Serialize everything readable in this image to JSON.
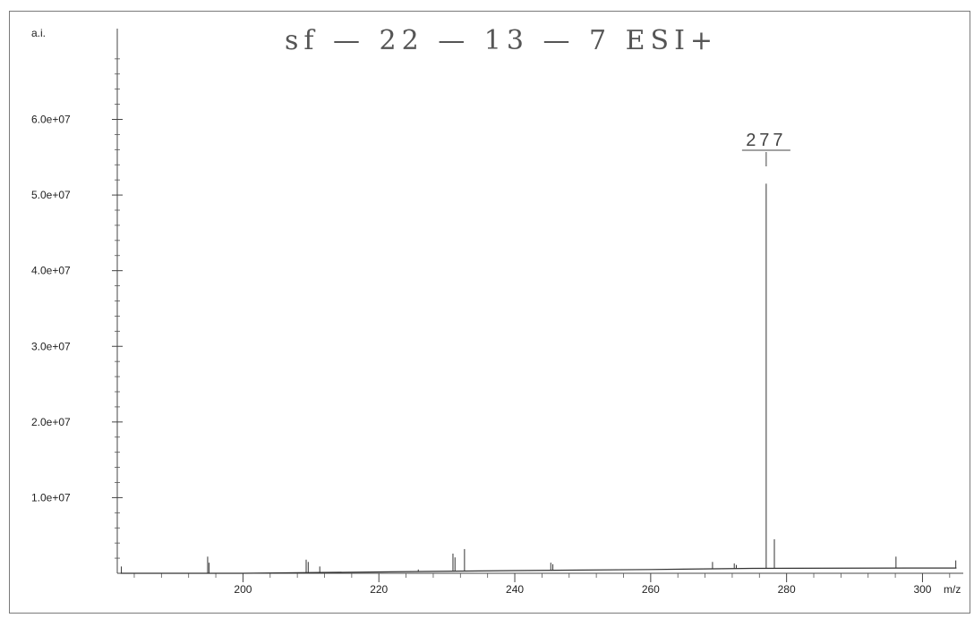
{
  "chart_data": {
    "type": "line",
    "title": "sf — 22 — 13 — 7  ESI+",
    "ylabel": "a.i.",
    "xlabel": "m/z",
    "xlim": [
      181.5,
      306
    ],
    "ylim": [
      0,
      72000000
    ],
    "x_ticks": [
      200,
      220,
      240,
      260,
      280,
      300
    ],
    "x_tick_labels": [
      "200",
      "220",
      "240",
      "260",
      "280",
      "300"
    ],
    "y_ticks": [
      10000000,
      20000000,
      30000000,
      40000000,
      50000000,
      60000000
    ],
    "y_tick_labels": [
      "1.0e+07",
      "2.0e+07",
      "3.0e+07",
      "4.0e+07",
      "5.0e+07",
      "6.0e+07"
    ],
    "grid": false,
    "baseline": {
      "x": [
        182,
        200,
        220,
        240,
        260,
        275,
        300,
        305
      ],
      "y": [
        0,
        0,
        180000,
        350000,
        500000,
        650000,
        700000,
        700000
      ]
    },
    "peaks": {
      "x": [
        182.1,
        194.8,
        195,
        209.3,
        209.6,
        211.3,
        225.8,
        230.9,
        231.2,
        232.6,
        245.3,
        245.6,
        269.1,
        272.3,
        272.6,
        277,
        278.2,
        296.1,
        304.9
      ],
      "y": [
        900000,
        2200000,
        1400000,
        1800000,
        1500000,
        900000,
        500000,
        2600000,
        2100000,
        3200000,
        1400000,
        1200000,
        1500000,
        1300000,
        1100000,
        51500000,
        4500000,
        2200000,
        1700000
      ]
    },
    "annotations": [
      {
        "text": "277",
        "x": 277
      }
    ]
  }
}
